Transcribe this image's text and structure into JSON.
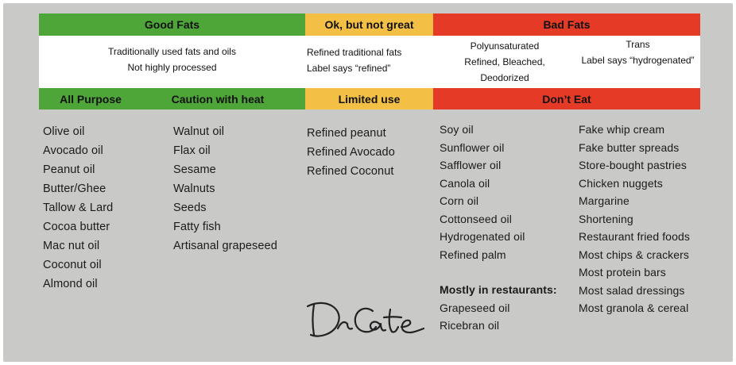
{
  "headers": {
    "good_fats": "Good Fats",
    "ok_not_great": "Ok, but not great",
    "bad_fats": "Bad Fats"
  },
  "descriptions": {
    "good": [
      "Traditionally used fats and oils",
      "Not highly processed"
    ],
    "ok": [
      "Refined traditional fats",
      "Label says “refined”"
    ],
    "bad_poly": [
      "Polyunsaturated",
      "Refined, Bleached,",
      "Deodorized"
    ],
    "bad_trans": [
      "Trans",
      "Label says “hydrogenated”"
    ]
  },
  "subheaders": {
    "all_purpose": "All Purpose",
    "caution_heat": "Caution with heat",
    "limited_use": "Limited use",
    "dont_eat": "Don’t Eat"
  },
  "lists": {
    "all_purpose": [
      "Olive oil",
      "Avocado oil",
      "Peanut oil",
      "Butter/Ghee",
      "Tallow & Lard",
      "Cocoa butter",
      "Mac nut oil",
      "Coconut oil",
      "Almond oil"
    ],
    "caution_heat": [
      "Walnut oil",
      "Flax oil",
      "Sesame",
      "Walnuts",
      "Seeds",
      "Fatty fish",
      "Artisanal grapeseed"
    ],
    "limited_use": [
      "Refined peanut",
      "Refined Avocado",
      "Refined Coconut"
    ],
    "dont_eat_oils": [
      "Soy oil",
      "Sunflower oil",
      "Safflower oil",
      "Canola oil",
      "Corn oil",
      "Cottonseed oil",
      "Hydrogenated oil",
      "Refined palm"
    ],
    "restaurants_heading": "Mostly in restaurants:",
    "restaurant_oils": [
      "Grapeseed oil",
      "Ricebran oil"
    ],
    "dont_eat_foods": [
      "Fake whip cream",
      "Fake butter spreads",
      "Store-bought pastries",
      "Chicken nuggets",
      "Margarine",
      "Shortening",
      "Restaurant fried foods",
      "Most chips & crackers",
      "Most protein bars",
      "Most salad dressings",
      "Most granola & cereal"
    ]
  },
  "colors": {
    "green": "#4ea638",
    "amber": "#f3bf45",
    "red": "#e43a26",
    "background": "#c9cac7"
  },
  "signature": {
    "icon": "handwritten-signature",
    "text": "DrCate"
  }
}
